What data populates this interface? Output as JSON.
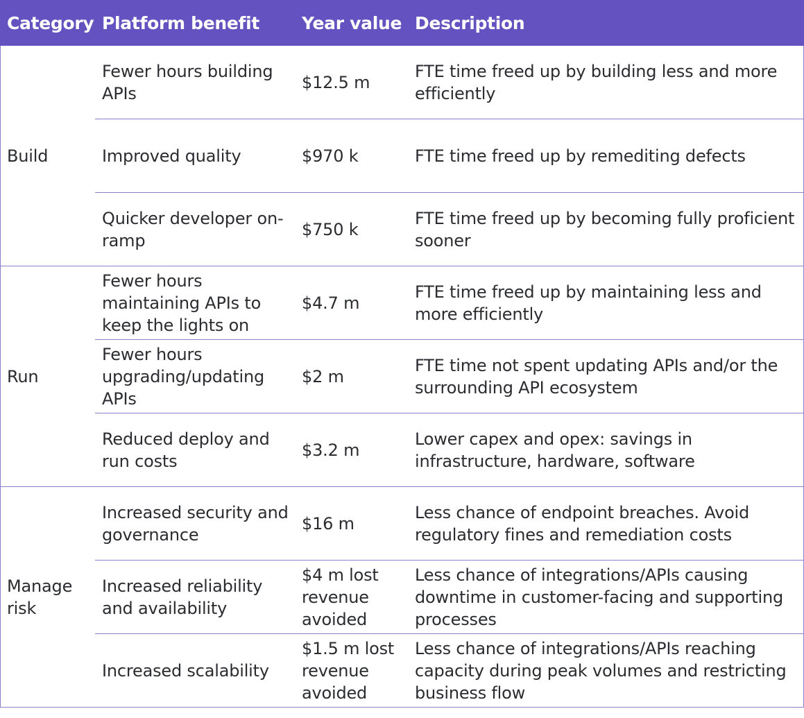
{
  "columns": [
    "Category",
    "Platform benefit",
    "Year value",
    "Description"
  ],
  "groups": [
    {
      "category": "Build",
      "rows": [
        {
          "benefit": "Fewer hours building APIs",
          "value": "$12.5 m",
          "description": "FTE time freed up by building less and more efficiently"
        },
        {
          "benefit": "Improved quality",
          "value": "$970 k",
          "description": "FTE time freed up by remediting defects"
        },
        {
          "benefit": "Quicker developer on-ramp",
          "value": "$750 k",
          "description": "FTE time freed up by becoming fully proficient sooner"
        }
      ]
    },
    {
      "category": "Run",
      "rows": [
        {
          "benefit": "Fewer hours maintaining APIs to keep the lights on",
          "value": "$4.7 m",
          "description": "FTE time freed up by maintaining less and more efficiently"
        },
        {
          "benefit": "Fewer hours upgrading/updating APIs",
          "value": "$2 m",
          "description": "FTE time not spent updating APIs and/or the surrounding API ecosystem"
        },
        {
          "benefit": "Reduced deploy and run costs",
          "value": "$3.2 m",
          "description": "Lower capex and opex: savings in infrastructure, hardware, software"
        }
      ]
    },
    {
      "category": "Manage risk",
      "rows": [
        {
          "benefit": "Increased security and governance",
          "value": "$16 m",
          "description": "Less chance of endpoint breaches. Avoid regulatory fines and remediation costs"
        },
        {
          "benefit": "Increased reliability and availability",
          "value": "$4 m lost revenue avoided",
          "description": "Less chance of integrations/APIs causing downtime in customer-facing and supporting processes"
        },
        {
          "benefit": "Increased scalability",
          "value": "$1.5 m lost revenue avoided",
          "description": "Less chance of integrations/APIs reaching capacity during peak volumes and restricting business flow"
        }
      ]
    }
  ]
}
